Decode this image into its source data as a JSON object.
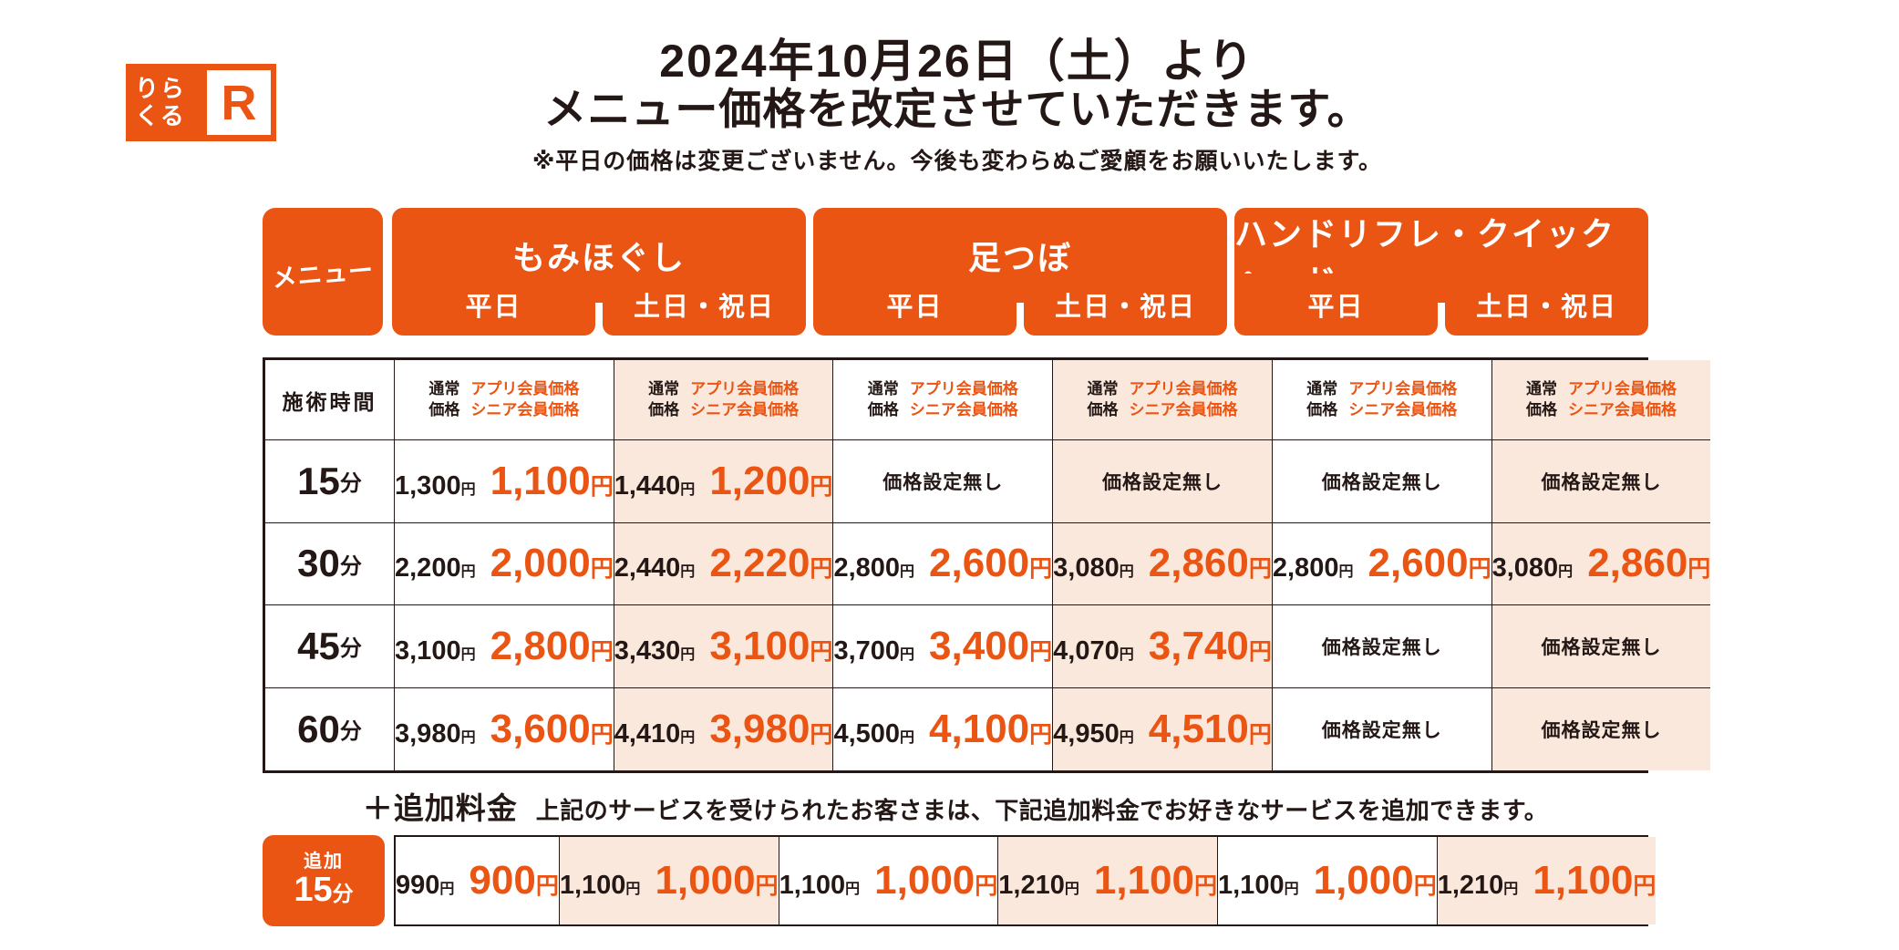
{
  "colors": {
    "orange": "#ea5514",
    "peach": "#fbe8dc",
    "ink": "#231815"
  },
  "logo": {
    "text_top": "りら",
    "text_bottom": "くる",
    "mark": "R"
  },
  "title": {
    "line1": "2024年10月26日（土）より",
    "line2": "メニュー価格を改定させていただきます。",
    "note": "※平日の価格は変更ございません。今後も変わらぬご愛顧をお願いいたします。"
  },
  "menu_header": {
    "corner": "メニュー",
    "groups": [
      "もみほぐし",
      "足つぼ",
      "ハンドリフレ・クイックヘッド"
    ],
    "days": [
      "平日",
      "土日・祝日",
      "平日",
      "土日・祝日",
      "平日",
      "土日・祝日"
    ]
  },
  "units": {
    "yen": "円",
    "min": "分"
  },
  "price_table": {
    "time_header": "施術時間",
    "normal_label_l1": "通常",
    "normal_label_l2": "価格",
    "member_label_l1": "アプリ会員価格",
    "member_label_l2": "シニア会員価格",
    "no_price": "価格設定無し",
    "rows": [
      {
        "time": "15",
        "cells": [
          {
            "normal": "1,300",
            "member": "1,100"
          },
          {
            "normal": "1,440",
            "member": "1,200"
          },
          {
            "none": true
          },
          {
            "none": true
          },
          {
            "none": true
          },
          {
            "none": true
          }
        ]
      },
      {
        "time": "30",
        "cells": [
          {
            "normal": "2,200",
            "member": "2,000"
          },
          {
            "normal": "2,440",
            "member": "2,220"
          },
          {
            "normal": "2,800",
            "member": "2,600"
          },
          {
            "normal": "3,080",
            "member": "2,860"
          },
          {
            "normal": "2,800",
            "member": "2,600"
          },
          {
            "normal": "3,080",
            "member": "2,860"
          }
        ]
      },
      {
        "time": "45",
        "cells": [
          {
            "normal": "3,100",
            "member": "2,800"
          },
          {
            "normal": "3,430",
            "member": "3,100"
          },
          {
            "normal": "3,700",
            "member": "3,400"
          },
          {
            "normal": "4,070",
            "member": "3,740"
          },
          {
            "none": true
          },
          {
            "none": true
          }
        ]
      },
      {
        "time": "60",
        "cells": [
          {
            "normal": "3,980",
            "member": "3,600"
          },
          {
            "normal": "4,410",
            "member": "3,980"
          },
          {
            "normal": "4,500",
            "member": "4,100"
          },
          {
            "normal": "4,950",
            "member": "4,510"
          },
          {
            "none": true
          },
          {
            "none": true
          }
        ]
      }
    ]
  },
  "addon": {
    "heading": "＋追加料金",
    "description": "上記のサービスを受けられたお客さまは、下記追加料金でお好きなサービスを追加できます。",
    "badge_label": "追加",
    "badge_time": "15",
    "cells": [
      {
        "normal": "990",
        "member": "900"
      },
      {
        "normal": "1,100",
        "member": "1,000"
      },
      {
        "normal": "1,100",
        "member": "1,000"
      },
      {
        "normal": "1,210",
        "member": "1,100"
      },
      {
        "normal": "1,100",
        "member": "1,000"
      },
      {
        "normal": "1,210",
        "member": "1,100"
      }
    ]
  }
}
